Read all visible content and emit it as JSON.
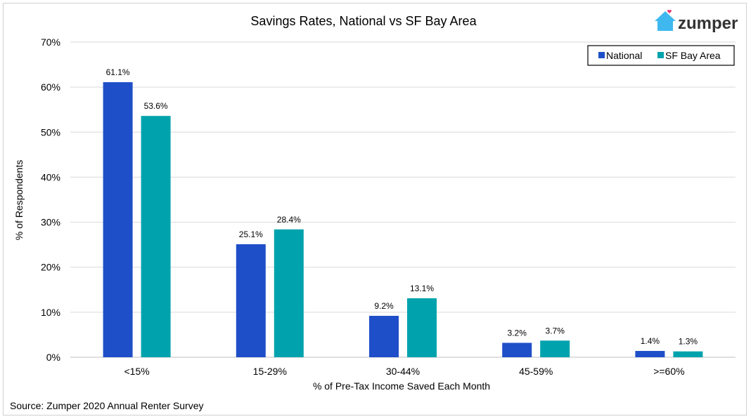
{
  "chart_data": {
    "type": "bar",
    "title": "Savings Rates, National vs SF Bay Area",
    "xlabel": "% of Pre-Tax Income Saved Each Month",
    "ylabel": "% of Respondents",
    "ylim": [
      0,
      70
    ],
    "yticks": [
      "0%",
      "10%",
      "20%",
      "30%",
      "40%",
      "50%",
      "60%",
      "70%"
    ],
    "categories": [
      "<15%",
      "15-29%",
      "30-44%",
      "45-59%",
      ">=60%"
    ],
    "series": [
      {
        "name": "National",
        "color": "#1f4fc8",
        "values": [
          61.1,
          25.1,
          9.2,
          3.2,
          1.4
        ],
        "labels": [
          "61.1%",
          "25.1%",
          "9.2%",
          "3.2%",
          "1.4%"
        ]
      },
      {
        "name": "SF Bay Area",
        "color": "#00a3ad",
        "values": [
          53.6,
          28.4,
          13.1,
          3.7,
          1.3
        ],
        "labels": [
          "53.6%",
          "28.4%",
          "13.1%",
          "3.7%",
          "1.3%"
        ]
      }
    ],
    "legend_position": "top-right",
    "grid": true
  },
  "source": "Source: Zumper 2020 Annual Renter Survey",
  "logo": {
    "text": "zumper",
    "house_color": "#3fb8f0",
    "heart_color": "#e8336e"
  }
}
